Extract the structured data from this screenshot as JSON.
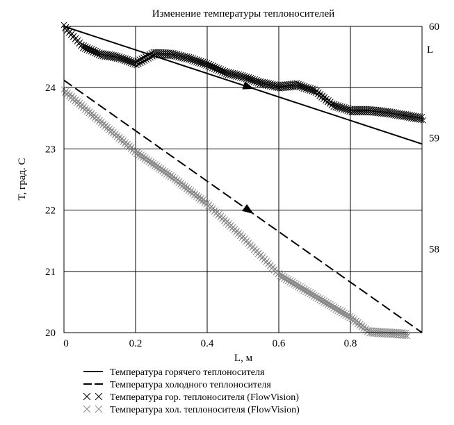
{
  "chart_data": {
    "type": "line",
    "title": "Изменение температуры теплоносителей",
    "xlabel": "L, м",
    "ylabel": "T, град. С",
    "right_axis_label": "L",
    "xlim": [
      0,
      1
    ],
    "ylim": [
      20,
      25
    ],
    "right_ylim": [
      57.25,
      60
    ],
    "grid": true,
    "legend_position": "bottom",
    "x_ticks": [
      "0",
      "0.2",
      "0.4",
      "0.6",
      "0.8"
    ],
    "y_ticks": [
      "20",
      "21",
      "22",
      "23",
      "24"
    ],
    "right_ticks": [
      "58",
      "59",
      "60"
    ],
    "series": [
      {
        "name": "Температура горячего теплоносителя",
        "style": "solid",
        "color": "#000000",
        "x": [
          0,
          1
        ],
        "y": [
          25,
          23.08
        ]
      },
      {
        "name": "Температура холодного теплоносителя",
        "style": "dashed",
        "color": "#000000",
        "x": [
          0,
          1
        ],
        "y": [
          24.12,
          20
        ]
      },
      {
        "name": "Температура гор. теплоносителя (FlowVision)",
        "style": "crosses",
        "color": "#000000",
        "x": [
          0,
          0.05,
          0.1,
          0.15,
          0.2,
          0.25,
          0.3,
          0.35,
          0.4,
          0.45,
          0.5,
          0.55,
          0.6,
          0.65,
          0.7,
          0.75,
          0.8,
          0.85,
          0.9,
          0.95,
          1
        ],
        "y": [
          25,
          24.68,
          24.55,
          24.5,
          24.4,
          24.56,
          24.55,
          24.48,
          24.38,
          24.25,
          24.18,
          24.08,
          24.02,
          24.05,
          23.95,
          23.72,
          23.63,
          23.63,
          23.6,
          23.55,
          23.5
        ]
      },
      {
        "name": "Температура хол. теплоносителя (FlowVision)",
        "style": "crosses",
        "color": "#888888",
        "x": [
          0,
          0.1,
          0.2,
          0.3,
          0.4,
          0.5,
          0.6,
          0.7,
          0.8,
          0.85,
          0.9,
          0.95,
          1
        ],
        "y": [
          23.95,
          23.45,
          22.95,
          22.55,
          22.1,
          21.55,
          20.95,
          20.6,
          20.25,
          20.02,
          20,
          19.98,
          19.96
        ]
      }
    ]
  }
}
